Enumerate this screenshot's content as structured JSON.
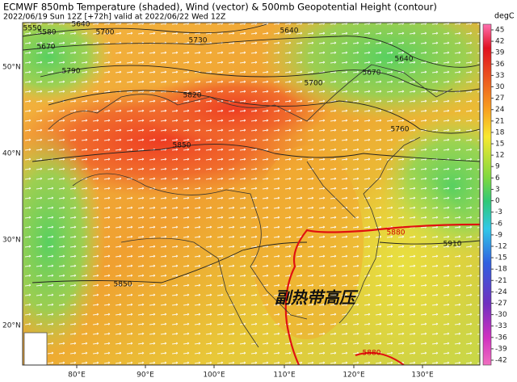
{
  "header": {
    "title": "ECMWF 850mb Temperature (shaded), Wind (vector) & 500mb Geopotential Height (contour)",
    "subtitle": "2022/06/19 Sun 12Z [+72h] valid at 2022/06/22 Wed 12Z"
  },
  "colorbar": {
    "unit": "degC",
    "ticks": [
      45,
      42,
      39,
      36,
      33,
      30,
      27,
      24,
      21,
      18,
      15,
      12,
      9,
      6,
      3,
      0,
      -3,
      -6,
      -9,
      -12,
      -15,
      -18,
      -21,
      -24,
      -27,
      -30,
      -33,
      -36,
      -39,
      -42
    ]
  },
  "axes": {
    "lat_labels": [
      "50°N",
      "40°N",
      "30°N",
      "20°N"
    ],
    "lon_labels": [
      "80°E",
      "90°E",
      "100°E",
      "110°E",
      "120°E",
      "130°E"
    ]
  },
  "contour_labels": [
    "5550",
    "5580",
    "5640",
    "5700",
    "5670",
    "5730",
    "5640",
    "5640",
    "5670",
    "5790",
    "5700",
    "5820",
    "5760",
    "5850",
    "5880",
    "5910",
    "5850",
    "5880"
  ],
  "annotation": "副热带高压"
}
